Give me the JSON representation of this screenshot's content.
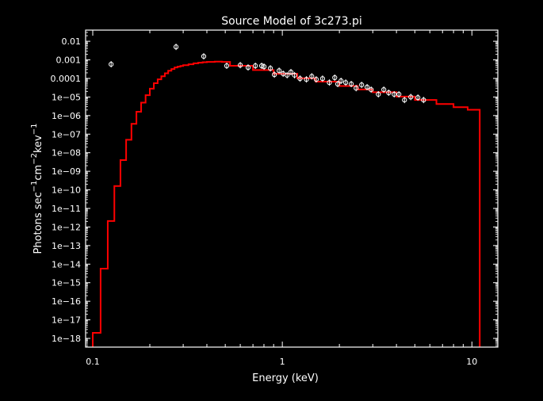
{
  "chart_data": {
    "type": "line",
    "title": "Source Model of 3c273.pi",
    "xlabel": "Energy (keV)",
    "ylabel": {
      "parts": [
        {
          "text": "Photons sec",
          "sup": false
        },
        {
          "text": "−1",
          "sup": true
        },
        {
          "text": "cm",
          "sup": false
        },
        {
          "text": "−2",
          "sup": true
        },
        {
          "text": "kev",
          "sup": false
        },
        {
          "text": "−1",
          "sup": true
        }
      ]
    },
    "x_scale": "log",
    "y_scale": "log",
    "xlim": [
      0.0917,
      13.7
    ],
    "ylim": [
      3.4e-19,
      0.04
    ],
    "x_ticks": [
      {
        "value": 0.1,
        "label": "0.1"
      },
      {
        "value": 1,
        "label": "1"
      },
      {
        "value": 10,
        "label": "10"
      }
    ],
    "y_ticks": [
      {
        "value": 0.01,
        "label": "0.01"
      },
      {
        "value": 0.001,
        "label": "0.001"
      },
      {
        "value": 0.0001,
        "label": "0.0001"
      },
      {
        "value": 1e-05,
        "label": "1e−05"
      },
      {
        "value": 1e-06,
        "label": "1e−06"
      },
      {
        "value": 1e-07,
        "label": "1e−07"
      },
      {
        "value": 1e-08,
        "label": "1e−08"
      },
      {
        "value": 1e-09,
        "label": "1e−09"
      },
      {
        "value": 1e-10,
        "label": "1e−10"
      },
      {
        "value": 1e-11,
        "label": "1e−11"
      },
      {
        "value": 1e-12,
        "label": "1e−12"
      },
      {
        "value": 1e-13,
        "label": "1e−13"
      },
      {
        "value": 1e-14,
        "label": "1e−14"
      },
      {
        "value": 1e-15,
        "label": "1e−15"
      },
      {
        "value": 1e-16,
        "label": "1e−16"
      },
      {
        "value": 1e-17,
        "label": "1e−17"
      },
      {
        "value": 1e-18,
        "label": "1e−18"
      }
    ],
    "grid": false,
    "series": [
      {
        "kind": "histogram-step",
        "color": "#ff0000",
        "bin_edges": [
          0.1,
          0.11,
          0.12,
          0.13,
          0.14,
          0.15,
          0.16,
          0.17,
          0.18,
          0.19,
          0.2,
          0.21,
          0.22,
          0.23,
          0.24,
          0.25,
          0.26,
          0.27,
          0.28,
          0.29,
          0.3,
          0.32,
          0.34,
          0.36,
          0.38,
          0.4,
          0.44,
          0.48,
          0.53,
          0.7,
          0.9,
          1.2,
          1.5,
          2.0,
          2.5,
          3.0,
          4.0,
          5.0,
          6.5,
          8.0,
          9.5,
          11.0
        ],
        "values": [
          2e-18,
          5.7e-15,
          2.1e-12,
          1.6e-10,
          4e-09,
          5e-08,
          3.6e-07,
          1.6e-06,
          5e-06,
          1.25e-05,
          2.8e-05,
          5.5e-05,
          8.9e-05,
          0.00013,
          0.00019,
          0.00026,
          0.00032,
          0.00039,
          0.00043,
          0.00047,
          0.00052,
          0.00058,
          0.00065,
          0.0007,
          0.00075,
          0.00078,
          0.0008,
          0.00078,
          0.00048,
          0.000284,
          0.000177,
          0.000102,
          6.7e-05,
          3.9e-05,
          2.56e-05,
          1.81e-05,
          1.05e-05,
          6.9e-06,
          4.2e-06,
          2.84e-06,
          2.05e-06
        ]
      },
      {
        "kind": "scatter-errorbar",
        "color": "#ffffff",
        "x": [
          0.125,
          0.275,
          0.385,
          0.509,
          0.6,
          0.66,
          0.721,
          0.778,
          0.801,
          0.865,
          0.908,
          0.962,
          1.01,
          1.06,
          1.11,
          1.16,
          1.24,
          1.34,
          1.43,
          1.51,
          1.63,
          1.77,
          1.89,
          1.96,
          2.04,
          2.16,
          2.31,
          2.45,
          2.62,
          2.8,
          2.94,
          3.21,
          3.43,
          3.64,
          3.89,
          4.12,
          4.41,
          4.76,
          5.19,
          5.56
        ],
        "y": [
          0.00058,
          0.005,
          0.00155,
          0.00048,
          0.00052,
          0.00039,
          0.00048,
          0.00048,
          0.00043,
          0.00035,
          0.00016,
          0.00026,
          0.00018,
          0.00015,
          0.00022,
          0.00015,
          9.8e-05,
          8.9e-05,
          0.00013,
          8.9e-05,
          9.8e-05,
          6e-05,
          0.00011,
          5e-05,
          7.4e-05,
          6e-05,
          5e-05,
          3e-05,
          4.5e-05,
          3.4e-05,
          2.5e-05,
          1.4e-05,
          2.5e-05,
          1.7e-05,
          1.4e-05,
          1.4e-05,
          6.9e-06,
          1e-05,
          9.3e-06,
          6.9e-06
        ]
      }
    ]
  }
}
